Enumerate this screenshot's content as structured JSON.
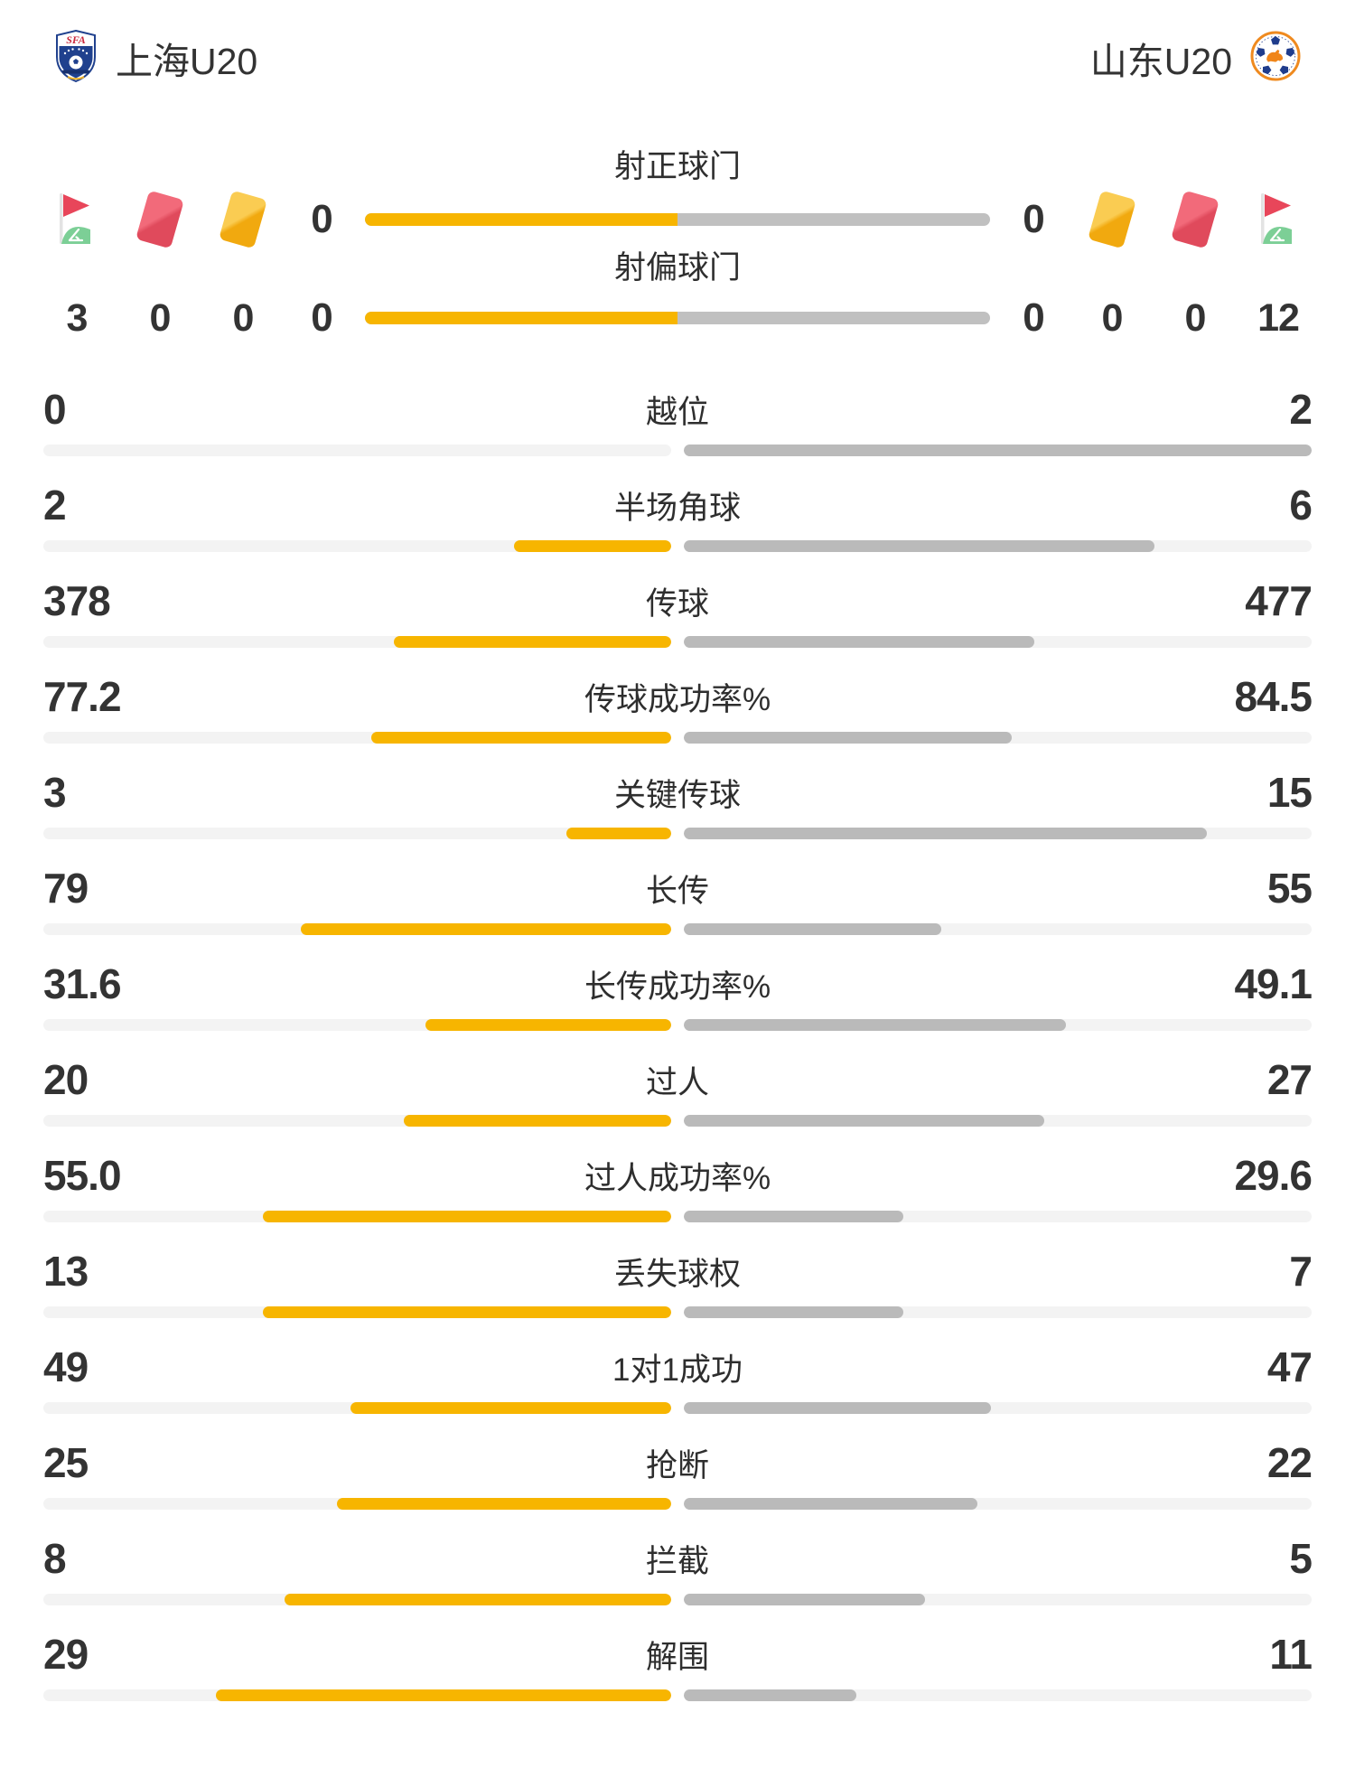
{
  "header": {
    "home_team": {
      "name": "上海U20",
      "badge": "sfa-shield"
    },
    "away_team": {
      "name": "山东U20",
      "badge": "shandong-crest"
    }
  },
  "discipline_icons": {
    "home": [
      {
        "icon": "corner-flag",
        "count": "3"
      },
      {
        "icon": "red-card",
        "count": "0"
      },
      {
        "icon": "yellow-card",
        "count": "0"
      }
    ],
    "away": [
      {
        "icon": "yellow-card",
        "count": "0"
      },
      {
        "icon": "red-card",
        "count": "0"
      },
      {
        "icon": "corner-flag",
        "count": "12"
      }
    ]
  },
  "shot_rows": [
    {
      "label": "射正球门",
      "home": "0",
      "away": "0"
    },
    {
      "label": "射偏球门",
      "home": "0",
      "away": "0"
    }
  ],
  "stats": [
    {
      "label": "越位",
      "home": "0",
      "away": "2"
    },
    {
      "label": "半场角球",
      "home": "2",
      "away": "6"
    },
    {
      "label": "传球",
      "home": "378",
      "away": "477"
    },
    {
      "label": "传球成功率%",
      "home": "77.2",
      "away": "84.5"
    },
    {
      "label": "关键传球",
      "home": "3",
      "away": "15"
    },
    {
      "label": "长传",
      "home": "79",
      "away": "55"
    },
    {
      "label": "长传成功率%",
      "home": "31.6",
      "away": "49.1"
    },
    {
      "label": "过人",
      "home": "20",
      "away": "27"
    },
    {
      "label": "过人成功率%",
      "home": "55.0",
      "away": "29.6"
    },
    {
      "label": "丢失球权",
      "home": "13",
      "away": "7"
    },
    {
      "label": "1对1成功",
      "home": "49",
      "away": "47"
    },
    {
      "label": "抢断",
      "home": "25",
      "away": "22"
    },
    {
      "label": "拦截",
      "home": "8",
      "away": "5"
    },
    {
      "label": "解围",
      "home": "29",
      "away": "11"
    }
  ],
  "colors": {
    "home_fill": "#F7B500",
    "away_fill": "#BABABA",
    "track": "#F3F3F3",
    "shot_bar_bg": "#C0C0C0",
    "text": "#333333",
    "red_card": "#E04A5C",
    "yellow_card": "#F1A90F",
    "flag_red": "#E8465A",
    "flag_green": "#7CCF96"
  }
}
